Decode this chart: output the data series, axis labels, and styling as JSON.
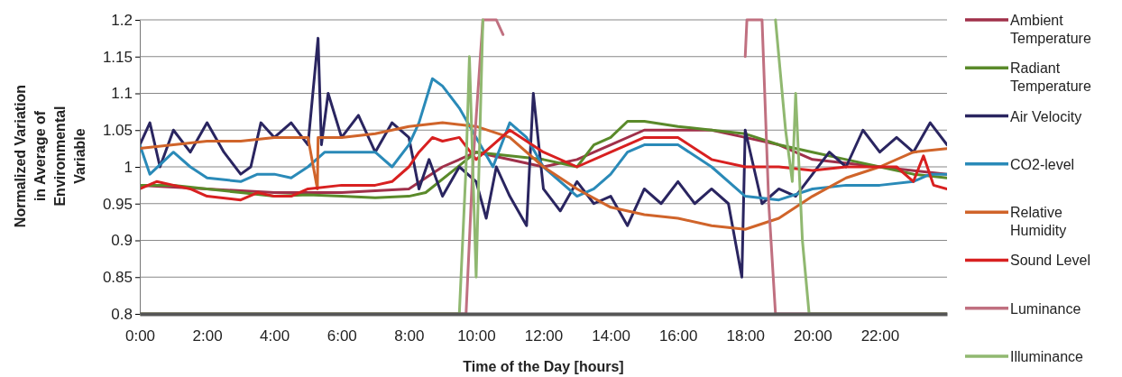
{
  "chart_data": {
    "type": "line",
    "xlabel": "Time of the Day [hours]",
    "ylabel": "Normalized Variation in Average of Environmental Variable",
    "xlim": [
      0,
      24
    ],
    "ylim": [
      0.8,
      1.2
    ],
    "xticks": [
      {
        "value": 0,
        "label": "0:00"
      },
      {
        "value": 2,
        "label": "2:00"
      },
      {
        "value": 4,
        "label": "4:00"
      },
      {
        "value": 6,
        "label": "6:00"
      },
      {
        "value": 8,
        "label": "8:00"
      },
      {
        "value": 10,
        "label": "10:00"
      },
      {
        "value": 12,
        "label": "12:00"
      },
      {
        "value": 14,
        "label": "14:00"
      },
      {
        "value": 16,
        "label": "16:00"
      },
      {
        "value": 18,
        "label": "18:00"
      },
      {
        "value": 20,
        "label": "20:00"
      },
      {
        "value": 22,
        "label": "22:00"
      }
    ],
    "yticks": [
      0.8,
      0.85,
      0.9,
      0.95,
      1,
      1.05,
      1.1,
      1.15,
      1.2
    ],
    "grid": "y",
    "legend": "right",
    "marker": "none",
    "line_style": "solid",
    "series": [
      {
        "name": "Ambient Temperature",
        "color": "#a0304a",
        "x": [
          0,
          2,
          4,
          6,
          8,
          9,
          10,
          12,
          13,
          14,
          15,
          17,
          18,
          19,
          20,
          22,
          24
        ],
        "values": [
          0.975,
          0.97,
          0.965,
          0.965,
          0.97,
          1.0,
          1.02,
          1.0,
          1.01,
          1.03,
          1.05,
          1.05,
          1.04,
          1.03,
          1.01,
          1.0,
          0.99
        ]
      },
      {
        "name": "Radiant Temperature",
        "color": "#5a8a2a",
        "x": [
          0,
          1,
          2,
          3,
          4,
          5,
          6,
          7,
          8,
          8.5,
          10,
          12,
          13,
          13.5,
          14,
          14.5,
          15,
          16,
          17,
          18,
          19,
          20,
          21,
          22,
          23,
          24
        ],
        "values": [
          0.975,
          0.975,
          0.97,
          0.965,
          0.96,
          0.962,
          0.96,
          0.958,
          0.96,
          0.965,
          1.02,
          1.01,
          1.0,
          1.03,
          1.04,
          1.062,
          1.062,
          1.055,
          1.05,
          1.045,
          1.03,
          1.02,
          1.01,
          1.0,
          0.99,
          0.985
        ]
      },
      {
        "name": "Air Velocity",
        "color": "#2a2560",
        "x": [
          0,
          0.3,
          0.6,
          1,
          1.5,
          2,
          2.5,
          3,
          3.3,
          3.6,
          4,
          4.5,
          5,
          5.3,
          5.4,
          5.6,
          6,
          6.5,
          7,
          7.5,
          8,
          8.3,
          8.6,
          9,
          9.5,
          10,
          10.3,
          10.6,
          11,
          11.5,
          11.7,
          12,
          12.5,
          13,
          13.5,
          14,
          14.5,
          15,
          15.5,
          16,
          16.5,
          17,
          17.5,
          17.9,
          18,
          18.5,
          19,
          19.5,
          20,
          20.5,
          21,
          21.5,
          22,
          22.5,
          23,
          23.5,
          24
        ],
        "values": [
          1.03,
          1.06,
          1.0,
          1.05,
          1.02,
          1.06,
          1.02,
          0.99,
          1.0,
          1.06,
          1.04,
          1.06,
          1.03,
          1.175,
          1.03,
          1.1,
          1.04,
          1.07,
          1.02,
          1.06,
          1.04,
          0.97,
          1.01,
          0.96,
          1.0,
          0.98,
          0.93,
          1.0,
          0.96,
          0.92,
          1.1,
          0.97,
          0.94,
          0.98,
          0.95,
          0.96,
          0.92,
          0.97,
          0.95,
          0.98,
          0.95,
          0.97,
          0.95,
          0.85,
          1.05,
          0.95,
          0.97,
          0.96,
          0.99,
          1.02,
          1.0,
          1.05,
          1.02,
          1.04,
          1.02,
          1.06,
          1.03
        ]
      },
      {
        "name": "CO2-level",
        "color": "#2a8ab8",
        "x": [
          0,
          0.3,
          1,
          1.5,
          2,
          3,
          3.5,
          4,
          4.5,
          5,
          5.5,
          6,
          7,
          7.5,
          8,
          8.3,
          8.7,
          9,
          9.5,
          10,
          10.5,
          11,
          11.5,
          12,
          13,
          13.5,
          14,
          14.5,
          15,
          16,
          17,
          18,
          19,
          20,
          21,
          22,
          23,
          23.5,
          24
        ],
        "values": [
          1.03,
          0.99,
          1.02,
          1.0,
          0.985,
          0.98,
          0.99,
          0.99,
          0.985,
          1.0,
          1.02,
          1.02,
          1.02,
          1.0,
          1.03,
          1.06,
          1.12,
          1.11,
          1.08,
          1.04,
          1.0,
          1.06,
          1.04,
          1.0,
          0.96,
          0.97,
          0.99,
          1.02,
          1.03,
          1.03,
          1.0,
          0.96,
          0.955,
          0.97,
          0.975,
          0.975,
          0.98,
          0.99,
          0.99
        ]
      },
      {
        "name": "Relative Humidity",
        "color": "#d0642a",
        "x": [
          0,
          1,
          2,
          3,
          4,
          5,
          5.28,
          5.3,
          5.32,
          6,
          7,
          8,
          9,
          10,
          11,
          12,
          13,
          14,
          15,
          16,
          17,
          18,
          19,
          20,
          21,
          22,
          23,
          24
        ],
        "values": [
          1.025,
          1.03,
          1.035,
          1.035,
          1.04,
          1.04,
          0.97,
          1.04,
          1.04,
          1.04,
          1.045,
          1.055,
          1.06,
          1.055,
          1.04,
          1.0,
          0.97,
          0.945,
          0.935,
          0.93,
          0.92,
          0.915,
          0.93,
          0.96,
          0.985,
          1.0,
          1.02,
          1.025
        ]
      },
      {
        "name": "Sound Level",
        "color": "#d82020",
        "x": [
          0,
          0.5,
          1,
          1.5,
          2,
          3,
          3.5,
          4,
          4.5,
          5,
          6,
          7,
          7.5,
          8,
          8.3,
          8.7,
          9,
          9.5,
          10,
          10.5,
          11,
          12,
          13,
          14,
          15,
          16,
          17,
          18,
          19,
          20,
          21,
          22,
          22.5,
          23,
          23.3,
          23.6,
          24
        ],
        "values": [
          0.97,
          0.98,
          0.975,
          0.97,
          0.96,
          0.955,
          0.965,
          0.96,
          0.96,
          0.97,
          0.975,
          0.975,
          0.98,
          1.0,
          1.02,
          1.04,
          1.035,
          1.04,
          1.01,
          1.03,
          1.05,
          1.02,
          1.0,
          1.02,
          1.04,
          1.04,
          1.01,
          1.0,
          1.0,
          0.995,
          1.0,
          1.0,
          1.0,
          0.98,
          1.015,
          0.975,
          0.97
        ]
      },
      {
        "name": "Luminance",
        "color": "#c07080",
        "x": [
          0,
          9.7,
          9.9,
          10.2,
          10.6,
          10.8,
          11,
          17.9,
          18.0,
          18.05,
          18.3,
          18.5,
          18.7,
          18.9,
          24
        ],
        "values": [
          0.8,
          0.8,
          1.0,
          1.2,
          1.2,
          1.18,
          null,
          null,
          1.15,
          1.2,
          1.2,
          1.2,
          0.95,
          0.8,
          0.8
        ]
      },
      {
        "name": "Illuminance",
        "color": "#90b870",
        "x": [
          0,
          9.5,
          9.7,
          9.8,
          10.0,
          10.2,
          10.5,
          18.8,
          18.9,
          19.2,
          19.4,
          19.5,
          19.7,
          19.9,
          24
        ],
        "values": [
          0.8,
          0.8,
          1.0,
          1.15,
          0.85,
          1.2,
          null,
          null,
          1.2,
          1.05,
          0.98,
          1.1,
          0.9,
          0.8,
          0.8
        ]
      }
    ]
  }
}
